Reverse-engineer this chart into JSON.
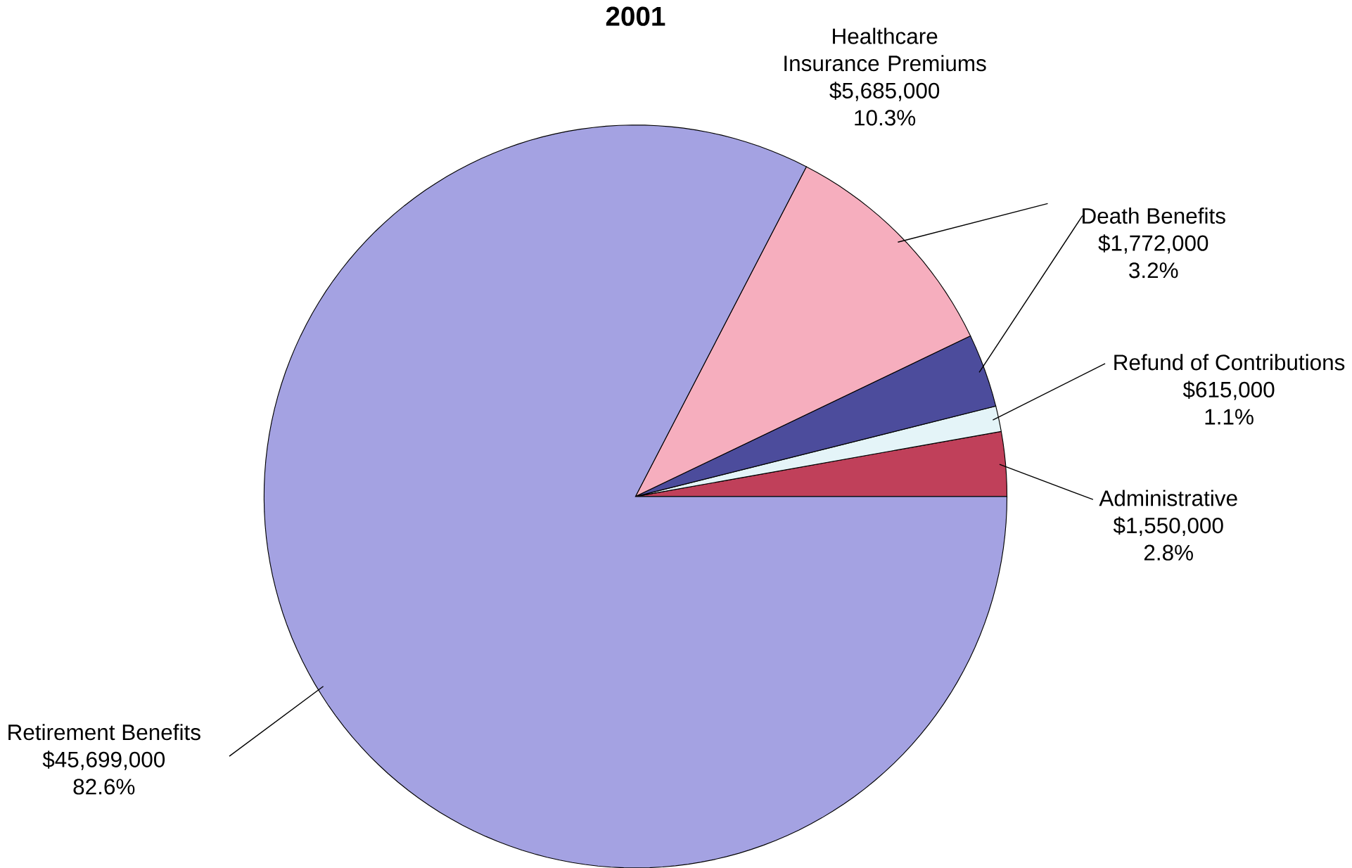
{
  "chart_data": {
    "type": "pie",
    "title": "2001",
    "categories": [
      "Administrative",
      "Refund of Contributions",
      "Death Benefits",
      "Healthcare Insurance Premiums",
      "Retirement Benefits"
    ],
    "values": [
      1550000,
      615000,
      1772000,
      5685000,
      45699000
    ],
    "value_labels": [
      "$1,550,000",
      "$615,000",
      "$1,772,000",
      "$5,685,000",
      "$45,699,000"
    ],
    "annotations": [
      "2.8%",
      "1.1%",
      "3.2%",
      "10.3%",
      "82.6%"
    ],
    "colors": [
      "#c0405a",
      "#e4f4f8",
      "#4c4c9c",
      "#f6aebe",
      "#a4a2e2"
    ]
  }
}
